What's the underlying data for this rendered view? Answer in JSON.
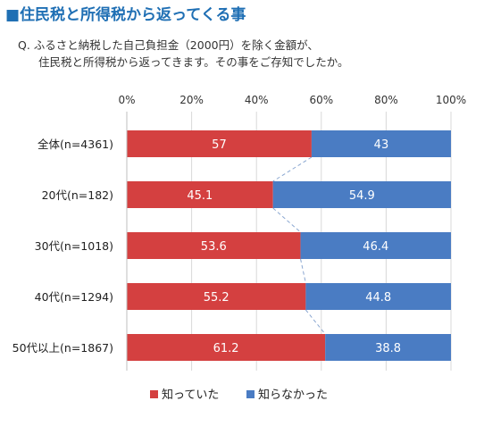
{
  "title": "■住民税と所得税から返ってくる事",
  "question": {
    "prefix": "Q.",
    "line1": "ふるさと納税した自己負担金（2000円）を除く金額が、",
    "line2": "住民税と所得税から返ってきます。その事をご存知でしたか。"
  },
  "colors": {
    "title": "#1f6fb4",
    "knew": "#d44040",
    "didnt_know": "#4a7cc3",
    "connector": "#8aa7d1"
  },
  "chart_data": {
    "type": "bar",
    "orientation": "horizontal",
    "stacked": true,
    "percent": true,
    "categories": [
      "全体(n=4361)",
      "20代(n=182)",
      "30代(n=1018)",
      "40代(n=1294)",
      "50代以上(n=1867)"
    ],
    "series": [
      {
        "name": "知っていた",
        "values": [
          57,
          45.1,
          53.6,
          55.2,
          61.2
        ],
        "color": "#d44040"
      },
      {
        "name": "知らなかった",
        "values": [
          43,
          54.9,
          46.4,
          44.8,
          38.8
        ],
        "color": "#4a7cc3"
      }
    ],
    "x_ticks": [
      "0%",
      "20%",
      "40%",
      "60%",
      "80%",
      "100%"
    ],
    "xlim": [
      0,
      100
    ],
    "grid": true,
    "series_lines": true,
    "legend": "bottom"
  }
}
